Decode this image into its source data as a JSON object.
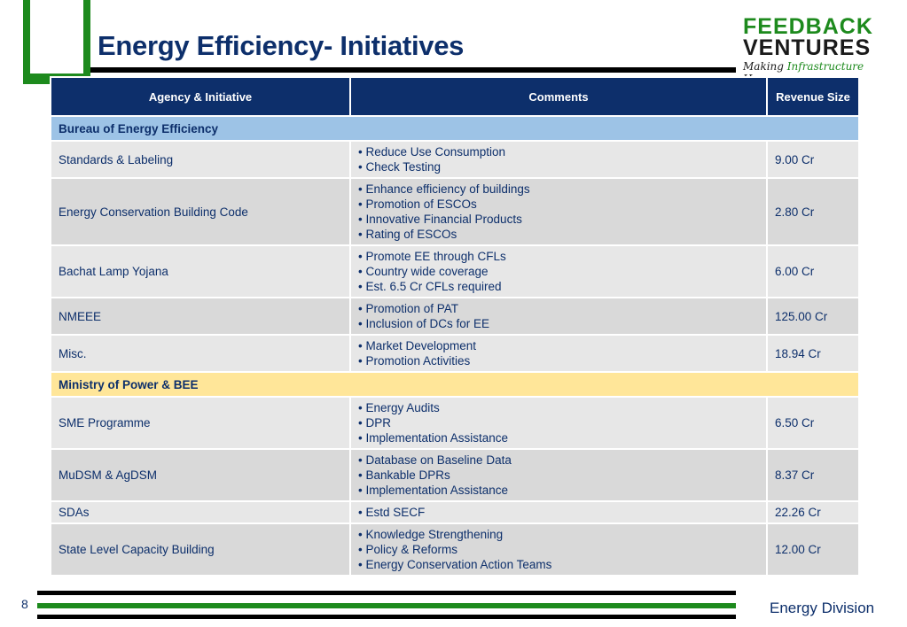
{
  "slide": {
    "title": "Energy Efficiency- Initiatives",
    "page_number": "8",
    "footer_division": "Energy Division"
  },
  "logo": {
    "line1": "FEEDBACK",
    "line2": "VENTURES",
    "tagline_part1": "Making ",
    "tagline_part2": "Infrastructure",
    "tagline_part3": " Happen"
  },
  "colors": {
    "navy": "#0d2f6b",
    "green": "#1d8a1d",
    "section_blue": "#9dc3e6",
    "section_yellow": "#ffe699"
  },
  "table": {
    "headers": [
      "Agency & Initiative",
      "Comments",
      "Revenue Size"
    ],
    "sections": [
      {
        "name": "Bureau of Energy Efficiency",
        "rows": [
          {
            "initiative": "Standards & Labeling",
            "comments": [
              "• Reduce Use Consumption",
              "• Check Testing"
            ],
            "revenue": "9.00 Cr"
          },
          {
            "initiative": "Energy Conservation Building Code",
            "comments": [
              "• Enhance efficiency of buildings",
              "• Promotion of ESCOs",
              "• Innovative Financial Products",
              "• Rating of ESCOs"
            ],
            "revenue": "2.80 Cr"
          },
          {
            "initiative": "Bachat Lamp Yojana",
            "comments": [
              "• Promote EE through CFLs",
              "• Country wide coverage",
              "• Est. 6.5 Cr CFLs required"
            ],
            "revenue": "6.00 Cr"
          },
          {
            "initiative": "NMEEE",
            "comments": [
              "• Promotion of PAT",
              "• Inclusion of DCs for EE"
            ],
            "revenue": "125.00 Cr"
          },
          {
            "initiative": "Misc.",
            "comments": [
              "• Market Development",
              "• Promotion Activities"
            ],
            "revenue": "18.94 Cr"
          }
        ]
      },
      {
        "name": "Ministry of Power & BEE",
        "rows": [
          {
            "initiative": "SME Programme",
            "comments": [
              "• Energy Audits",
              "• DPR",
              "• Implementation Assistance"
            ],
            "revenue": "6.50 Cr"
          },
          {
            "initiative": "MuDSM & AgDSM",
            "comments": [
              "• Database on Baseline Data",
              "• Bankable DPRs",
              "• Implementation Assistance"
            ],
            "revenue": "8.37 Cr"
          },
          {
            "initiative": "SDAs",
            "comments": [
              "• Estd SECF"
            ],
            "revenue": "22.26 Cr"
          },
          {
            "initiative": "State Level Capacity Building",
            "comments": [
              "• Knowledge Strengthening",
              "• Policy & Reforms",
              "• Energy Conservation Action Teams"
            ],
            "revenue": "12.00 Cr"
          }
        ]
      }
    ]
  }
}
